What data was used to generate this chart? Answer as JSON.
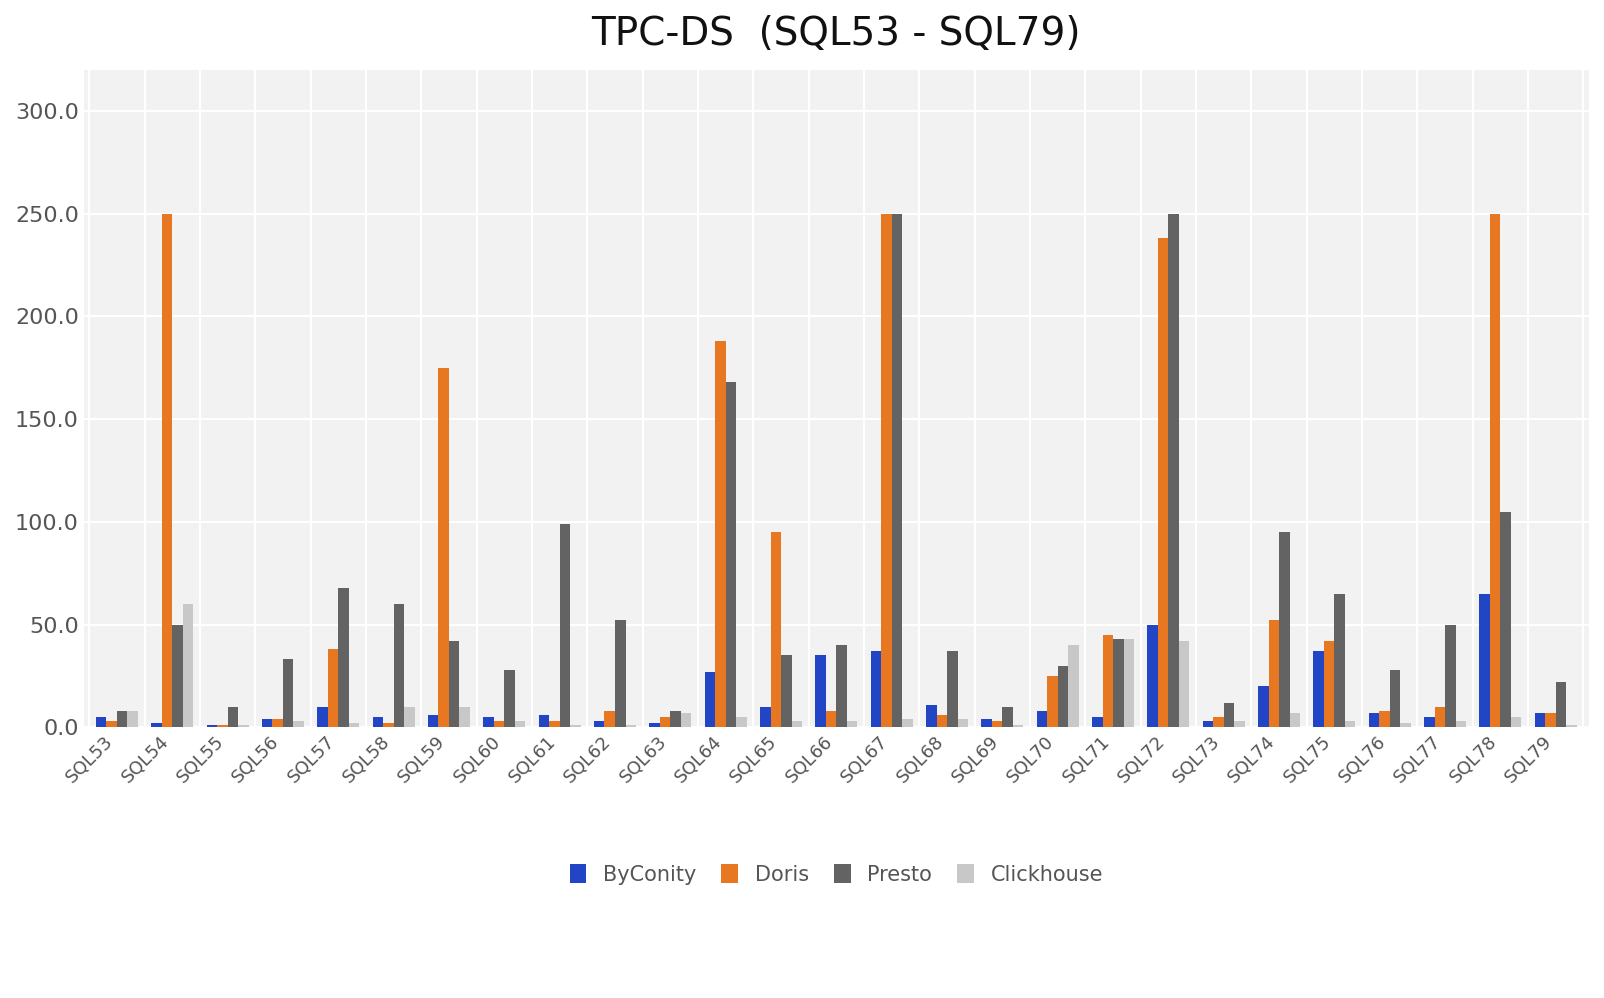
{
  "title": "TPC-DS  (SQL53 - SQL79)",
  "categories": [
    "SQL53",
    "SQL54",
    "SQL55",
    "SQL56",
    "SQL57",
    "SQL58",
    "SQL59",
    "SQL60",
    "SQL61",
    "SQL62",
    "SQL63",
    "SQL64",
    "SQL65",
    "SQL66",
    "SQL67",
    "SQL68",
    "SQL69",
    "SQL70",
    "SQL71",
    "SQL72",
    "SQL73",
    "SQL74",
    "SQL75",
    "SQL76",
    "SQL77",
    "SQL78",
    "SQL79"
  ],
  "series": {
    "ByConity": [
      5,
      2,
      1,
      4,
      10,
      5,
      6,
      5,
      6,
      3,
      2,
      27,
      10,
      35,
      37,
      11,
      4,
      8,
      5,
      50,
      3,
      20,
      37,
      7,
      5,
      65,
      7
    ],
    "Doris": [
      3,
      250,
      1,
      4,
      38,
      2,
      175,
      3,
      3,
      8,
      5,
      188,
      95,
      8,
      250,
      6,
      3,
      25,
      45,
      238,
      5,
      52,
      42,
      8,
      10,
      250,
      7
    ],
    "Presto": [
      8,
      50,
      10,
      33,
      68,
      60,
      42,
      28,
      99,
      52,
      8,
      168,
      35,
      40,
      250,
      37,
      10,
      30,
      43,
      250,
      12,
      95,
      65,
      28,
      50,
      105,
      22
    ],
    "Clickhouse": [
      8,
      60,
      1,
      3,
      2,
      10,
      10,
      3,
      1,
      1,
      7,
      5,
      3,
      3,
      4,
      4,
      1,
      40,
      43,
      42,
      3,
      7,
      3,
      2,
      3,
      5,
      1
    ]
  },
  "colors": {
    "ByConity": "#2145C5",
    "Doris": "#E87722",
    "Presto": "#636363",
    "Clickhouse": "#C8C8C8"
  },
  "ylim": [
    0,
    320
  ],
  "yticks": [
    0.0,
    50.0,
    100.0,
    150.0,
    200.0,
    250.0,
    300.0
  ],
  "background_color": "#ffffff",
  "plot_bg_color": "#f2f2f2",
  "grid_color": "#ffffff",
  "title_fontsize": 28,
  "tick_fontsize": 13,
  "legend_fontsize": 15,
  "bar_width": 0.19
}
